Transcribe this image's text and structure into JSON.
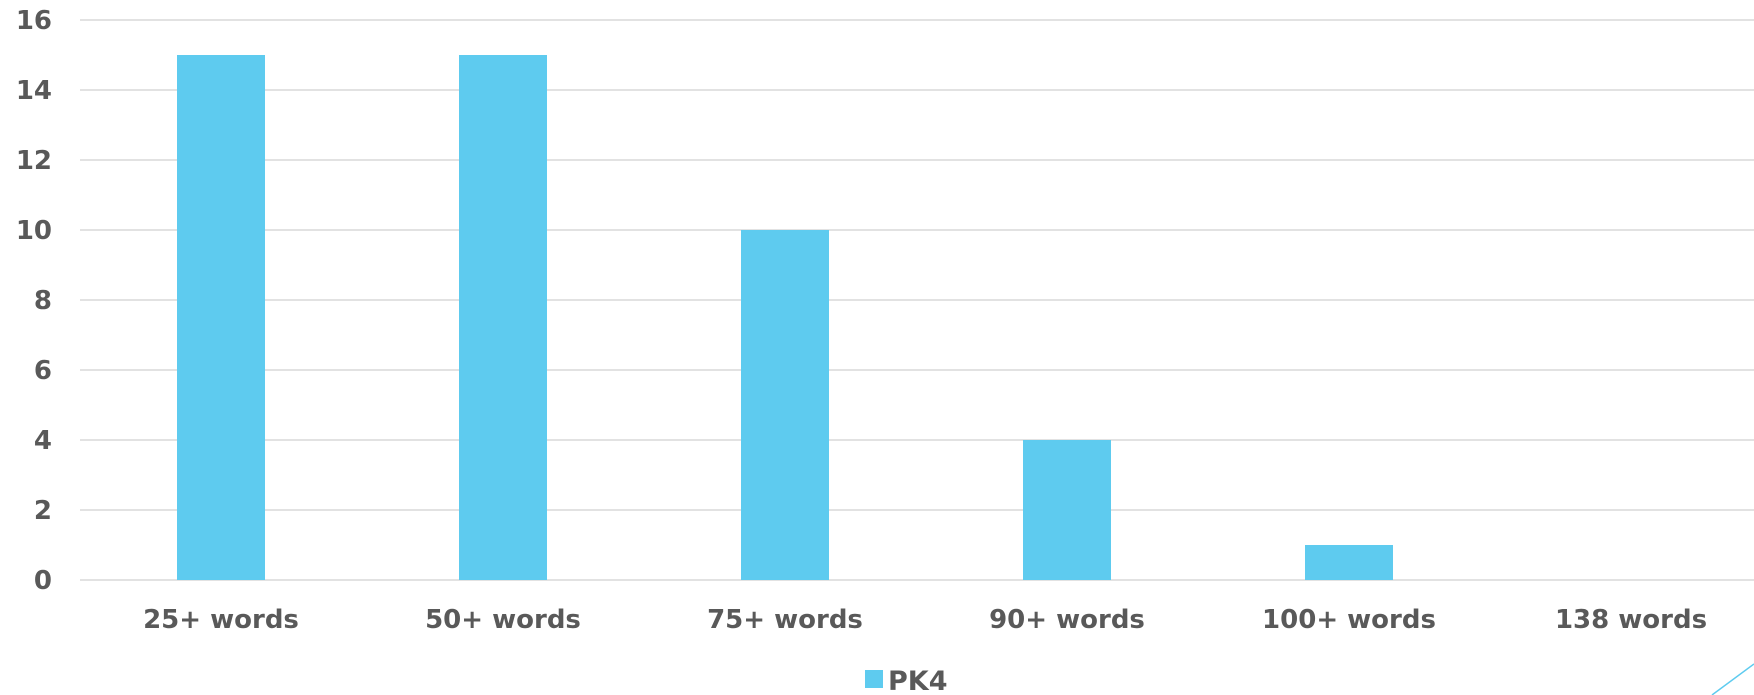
{
  "chart_data": {
    "type": "bar",
    "categories": [
      "25+ words",
      "50+ words",
      "75+ words",
      "90+ words",
      "100+ words",
      "138 words"
    ],
    "series": [
      {
        "name": "PK4",
        "values": [
          15,
          15,
          10,
          4,
          1,
          0
        ]
      }
    ],
    "xlabel": "",
    "ylabel": "",
    "ylim": [
      0,
      16
    ],
    "yticks": [
      0,
      2,
      4,
      6,
      8,
      10,
      12,
      14,
      16
    ],
    "grid": true,
    "legend": "bottom-center",
    "colors": {
      "bar": "#5ECBEF",
      "grid": "#D9D9D9",
      "text": "#595959",
      "accent_line": "#5ECBEF"
    }
  }
}
